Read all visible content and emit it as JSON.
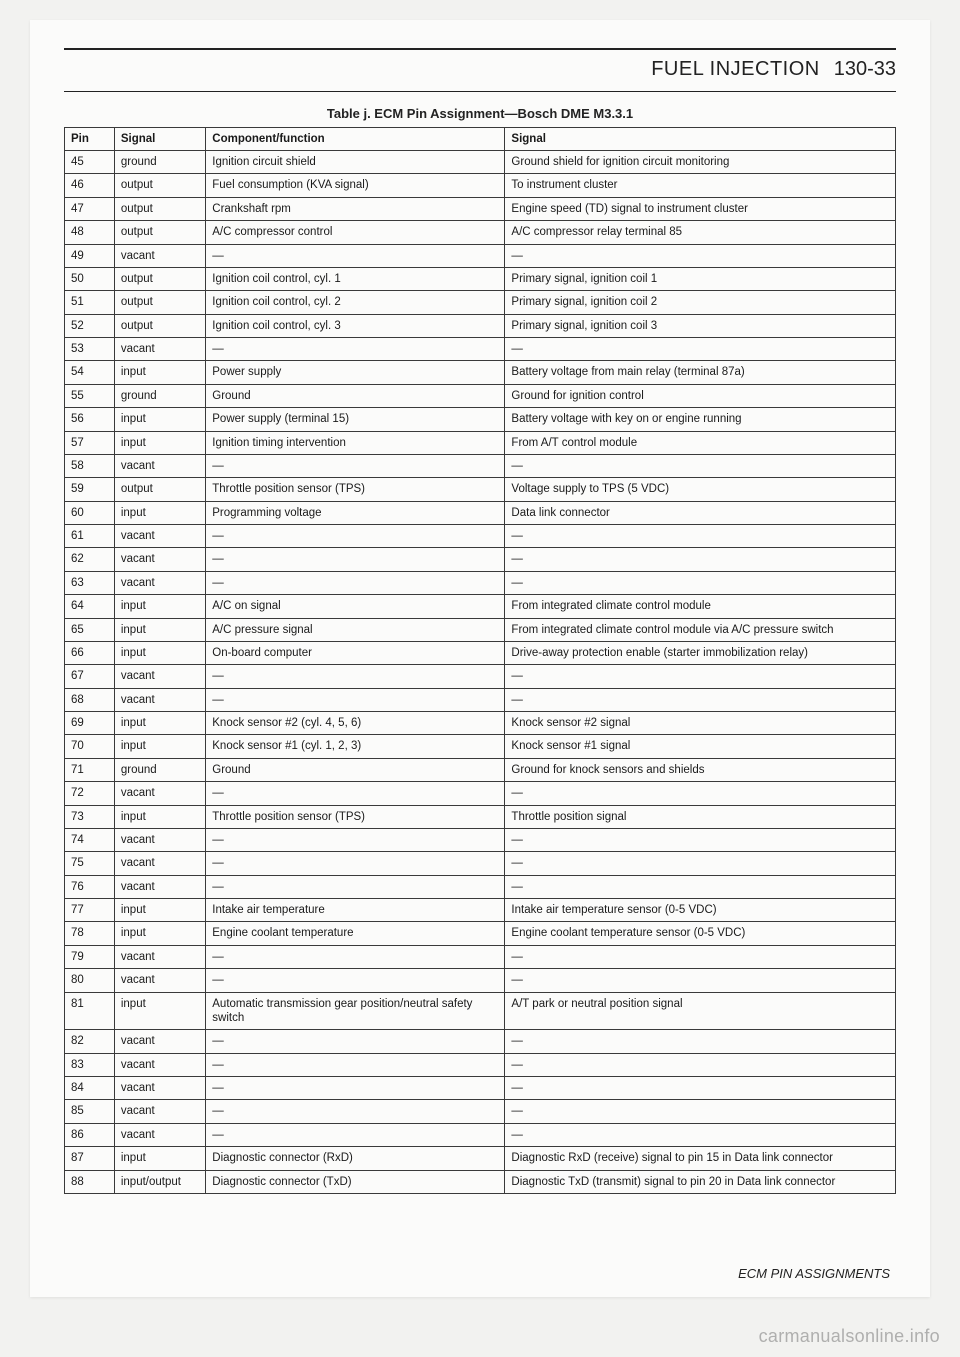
{
  "header": {
    "section_title": "FUEL INJECTION",
    "page_number": "130-33"
  },
  "table": {
    "caption": "Table j. ECM Pin Assignment—Bosch DME M3.3.1",
    "columns": [
      "Pin",
      "Signal",
      "Component/function",
      "Signal"
    ],
    "rows": [
      [
        "45",
        "ground",
        "Ignition circuit shield",
        "Ground shield for ignition circuit monitoring"
      ],
      [
        "46",
        "output",
        "Fuel consumption (KVA signal)",
        "To instrument cluster"
      ],
      [
        "47",
        "output",
        "Crankshaft rpm",
        "Engine speed (TD) signal to instrument cluster"
      ],
      [
        "48",
        "output",
        "A/C compressor control",
        "A/C compressor relay terminal 85"
      ],
      [
        "49",
        "vacant",
        "—",
        "—"
      ],
      [
        "50",
        "output",
        "Ignition coil control, cyl. 1",
        "Primary signal, ignition coil 1"
      ],
      [
        "51",
        "output",
        "Ignition coil control, cyl. 2",
        "Primary signal, ignition coil 2"
      ],
      [
        "52",
        "output",
        "Ignition coil control, cyl. 3",
        "Primary signal, ignition coil 3"
      ],
      [
        "53",
        "vacant",
        "—",
        "—"
      ],
      [
        "54",
        "input",
        "Power supply",
        "Battery voltage from main relay (terminal 87a)"
      ],
      [
        "55",
        "ground",
        "Ground",
        "Ground for ignition control"
      ],
      [
        "56",
        "input",
        "Power supply (terminal 15)",
        "Battery voltage with key on or engine running"
      ],
      [
        "57",
        "input",
        "Ignition timing intervention",
        "From A/T control module"
      ],
      [
        "58",
        "vacant",
        "—",
        "—"
      ],
      [
        "59",
        "output",
        "Throttle position sensor (TPS)",
        "Voltage supply to TPS (5 VDC)"
      ],
      [
        "60",
        "input",
        "Programming voltage",
        "Data link connector"
      ],
      [
        "61",
        "vacant",
        "—",
        "—"
      ],
      [
        "62",
        "vacant",
        "—",
        "—"
      ],
      [
        "63",
        "vacant",
        "—",
        "—"
      ],
      [
        "64",
        "input",
        "A/C on signal",
        "From integrated climate control module"
      ],
      [
        "65",
        "input",
        "A/C pressure signal",
        "From integrated climate control module via A/C pressure switch"
      ],
      [
        "66",
        "input",
        "On-board computer",
        "Drive-away protection enable (starter immobilization relay)"
      ],
      [
        "67",
        "vacant",
        "—",
        "—"
      ],
      [
        "68",
        "vacant",
        "—",
        "—"
      ],
      [
        "69",
        "input",
        "Knock sensor #2 (cyl. 4, 5, 6)",
        "Knock sensor #2 signal"
      ],
      [
        "70",
        "input",
        "Knock sensor #1 (cyl. 1, 2, 3)",
        "Knock sensor #1 signal"
      ],
      [
        "71",
        "ground",
        "Ground",
        "Ground for knock sensors and shields"
      ],
      [
        "72",
        "vacant",
        "—",
        "—"
      ],
      [
        "73",
        "input",
        "Throttle position sensor (TPS)",
        "Throttle position signal"
      ],
      [
        "74",
        "vacant",
        "—",
        "—"
      ],
      [
        "75",
        "vacant",
        "—",
        "—"
      ],
      [
        "76",
        "vacant",
        "—",
        "—"
      ],
      [
        "77",
        "input",
        "Intake air temperature",
        "Intake air temperature sensor (0-5 VDC)"
      ],
      [
        "78",
        "input",
        "Engine coolant temperature",
        "Engine coolant temperature sensor (0-5 VDC)"
      ],
      [
        "79",
        "vacant",
        "—",
        "—"
      ],
      [
        "80",
        "vacant",
        "—",
        "—"
      ],
      [
        "81",
        "input",
        "Automatic transmission gear position/neutral safety switch",
        "A/T park or neutral position signal"
      ],
      [
        "82",
        "vacant",
        "—",
        "—"
      ],
      [
        "83",
        "vacant",
        "—",
        "—"
      ],
      [
        "84",
        "vacant",
        "—",
        "—"
      ],
      [
        "85",
        "vacant",
        "—",
        "—"
      ],
      [
        "86",
        "vacant",
        "—",
        "—"
      ],
      [
        "87",
        "input",
        "Diagnostic connector (RxD)",
        "Diagnostic RxD (receive) signal to pin 15 in Data link connector"
      ],
      [
        "88",
        "input/output",
        "Diagnostic connector (TxD)",
        "Diagnostic TxD (transmit) signal to pin 20 in Data link connector"
      ]
    ]
  },
  "footer": {
    "label": "ECM PIN ASSIGNMENTS"
  },
  "watermark": "carmanualsonline.info",
  "style": {
    "page_bg": "#fbfbfa",
    "body_bg": "#f2f2f0",
    "border_color": "#3a3a3a",
    "font_family": "Arial, Helvetica, sans-serif",
    "caption_fontsize": 13,
    "cell_fontsize": 11.5,
    "header_fontsize": 20
  }
}
